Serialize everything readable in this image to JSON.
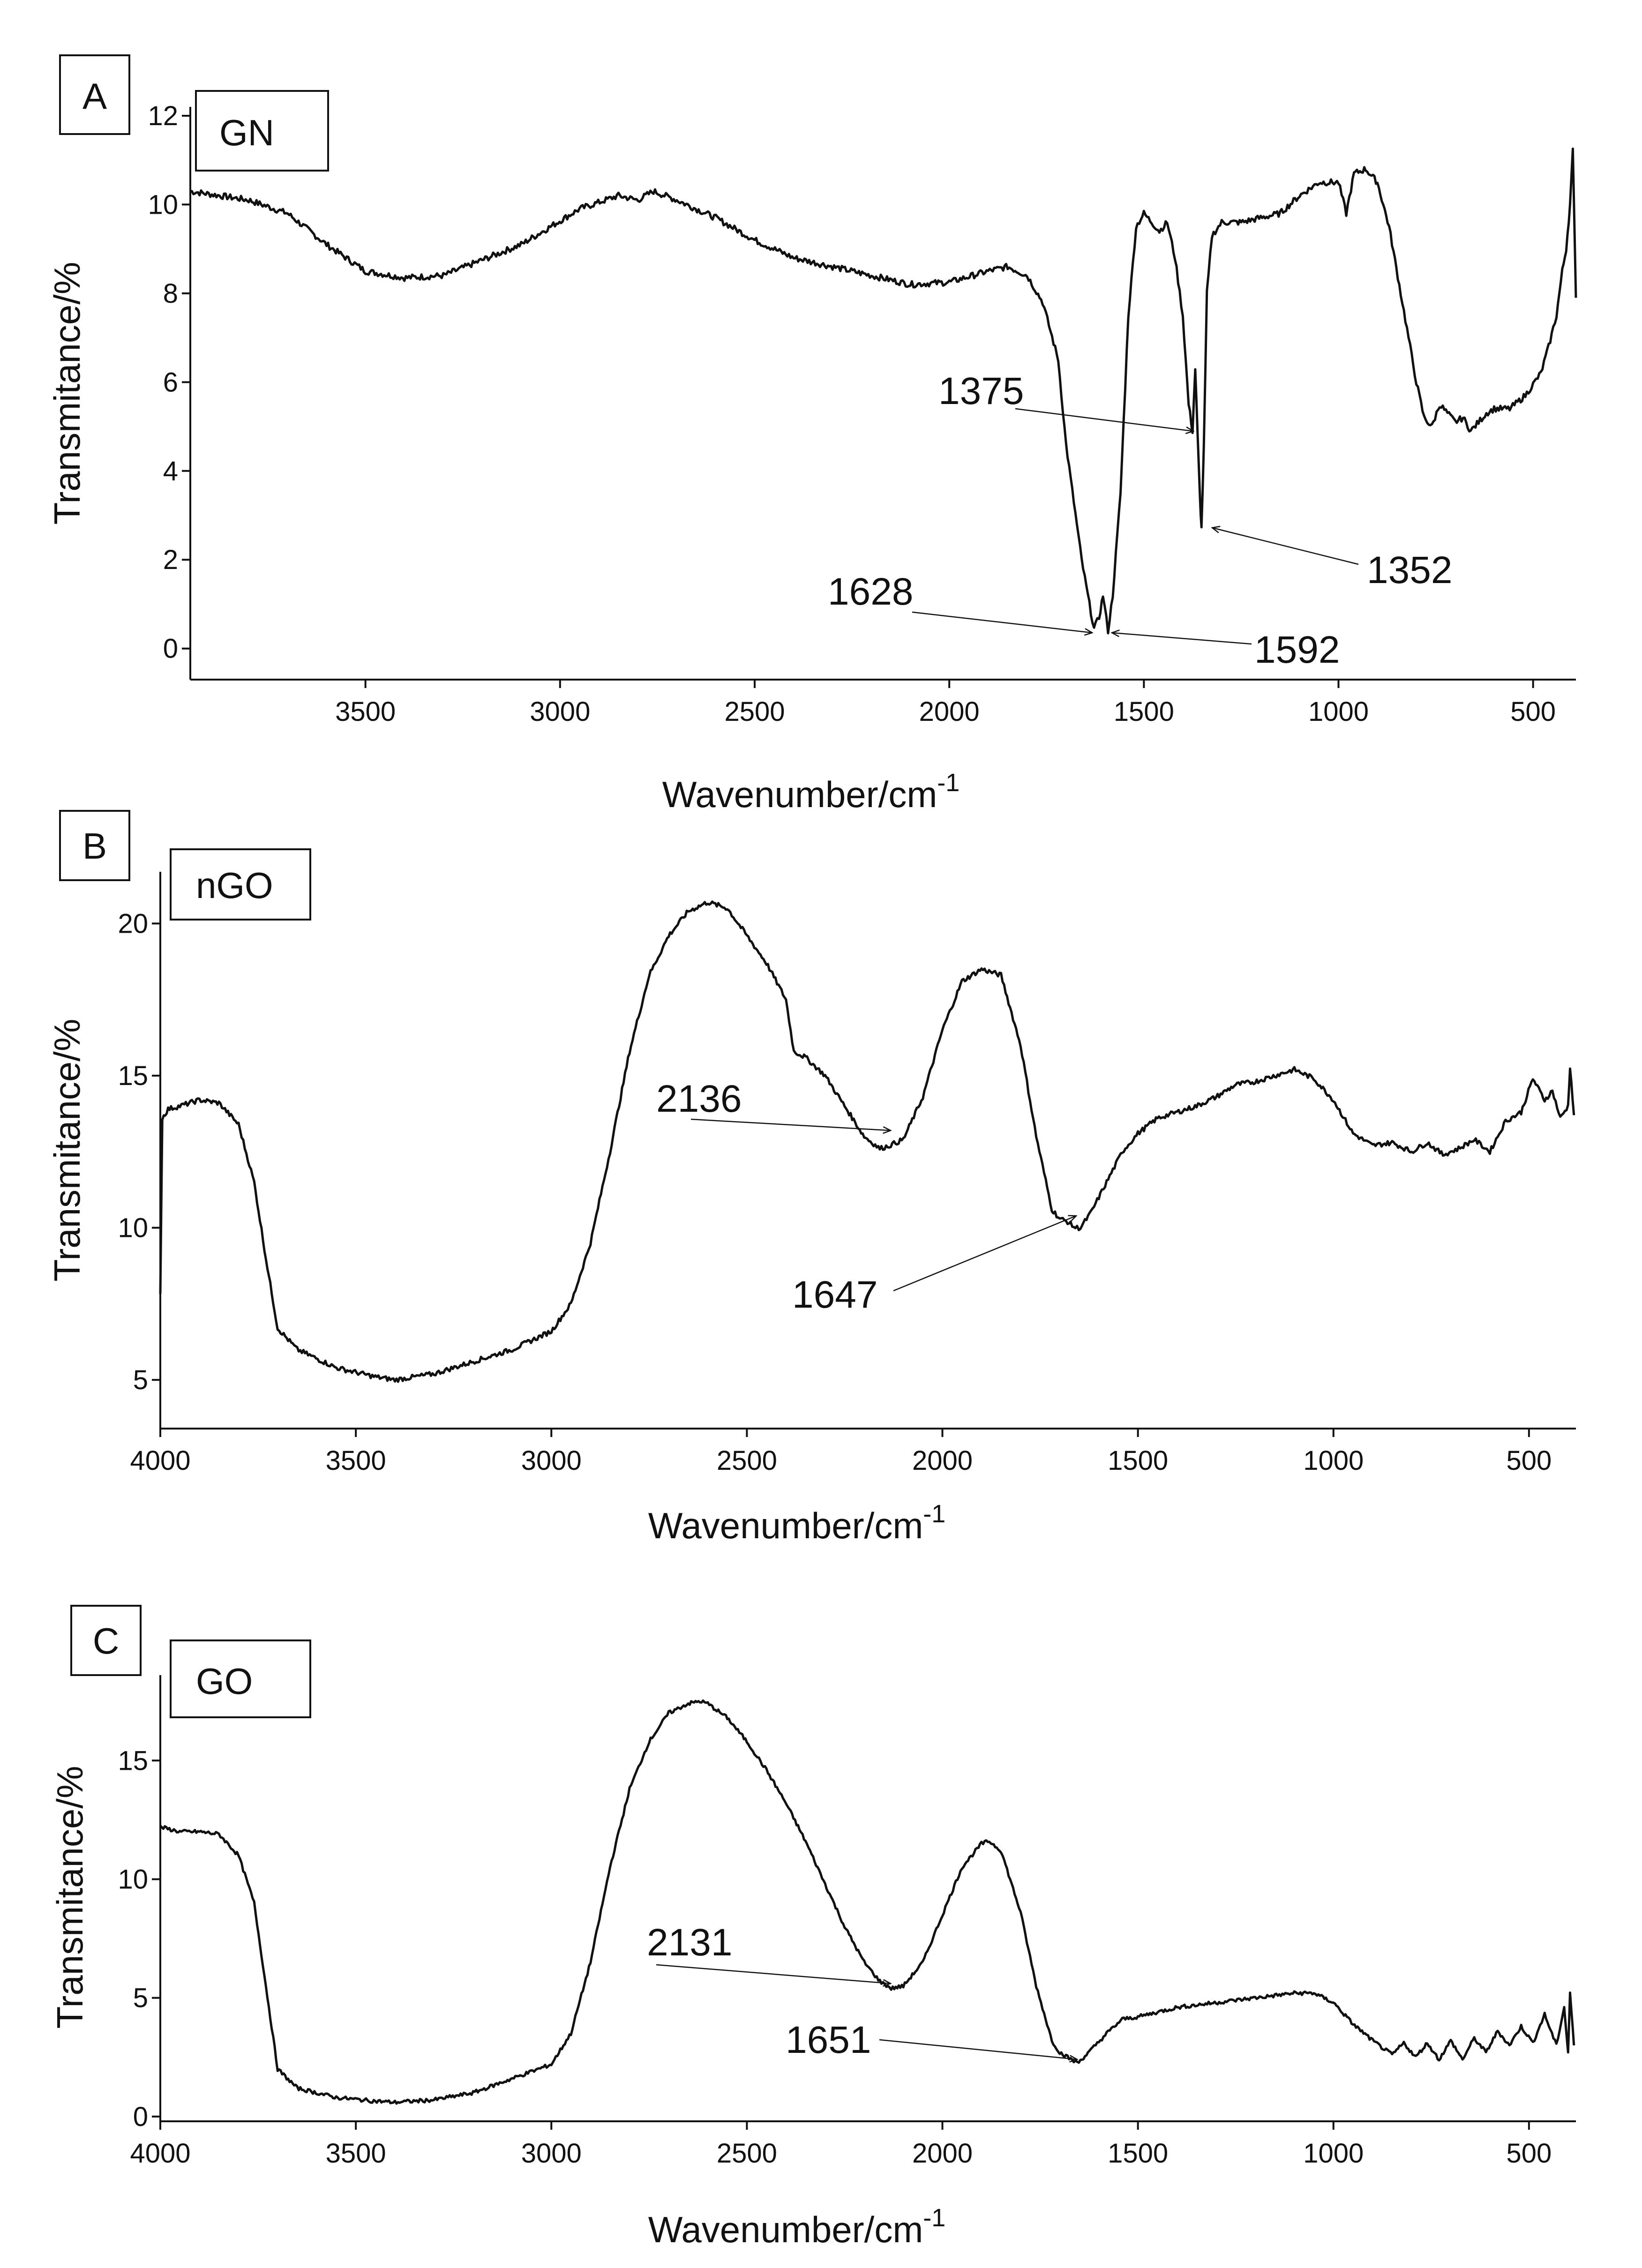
{
  "chart_data": [
    {
      "type": "line",
      "panel": "A",
      "sample": "GN",
      "xlabel": "Wavenumber/cm",
      "xlabel_superscript": "-1",
      "ylabel": "Transmitance/%",
      "xlim": [
        3950,
        390
      ],
      "ylim": [
        -0.7,
        12.2
      ],
      "xticks": [
        3500,
        3000,
        2500,
        2000,
        1500,
        1000,
        500
      ],
      "yticks": [
        0,
        2,
        4,
        6,
        8,
        10,
        12
      ],
      "noise": 0.07,
      "series": [
        {
          "name": "GN",
          "x": [
            3950,
            3800,
            3700,
            3600,
            3500,
            3400,
            3300,
            3100,
            2950,
            2850,
            2800,
            2760,
            2700,
            2600,
            2500,
            2400,
            2300,
            2200,
            2100,
            2000,
            1900,
            1850,
            1800,
            1760,
            1720,
            1700,
            1680,
            1660,
            1640,
            1628,
            1615,
            1605,
            1592,
            1580,
            1560,
            1540,
            1520,
            1500,
            1480,
            1460,
            1440,
            1420,
            1400,
            1385,
            1375,
            1368,
            1362,
            1356,
            1352,
            1346,
            1338,
            1325,
            1300,
            1250,
            1200,
            1150,
            1100,
            1050,
            1000,
            980,
            960,
            930,
            900,
            870,
            840,
            800,
            780,
            760,
            740,
            720,
            700,
            680,
            660,
            640,
            620,
            600,
            560,
            520,
            480,
            460,
            440,
            425,
            415,
            405,
            398,
            390
          ],
          "y": [
            10.3,
            10.1,
            9.8,
            9.1,
            8.5,
            8.35,
            8.4,
            9.1,
            9.9,
            10.2,
            10.1,
            10.3,
            10.1,
            9.7,
            9.2,
            8.8,
            8.6,
            8.4,
            8.2,
            8.25,
            8.5,
            8.6,
            8.4,
            7.8,
            6.5,
            4.6,
            3.3,
            2.0,
            1.0,
            0.45,
            0.7,
            1.2,
            0.4,
            1.2,
            3.5,
            7.5,
            9.5,
            9.8,
            9.6,
            9.4,
            9.6,
            8.8,
            7.5,
            5.5,
            4.9,
            6.3,
            4.8,
            3.4,
            2.7,
            4.5,
            8.0,
            9.3,
            9.6,
            9.6,
            9.7,
            9.8,
            10.2,
            10.5,
            10.5,
            9.8,
            10.7,
            10.8,
            10.5,
            9.5,
            8.0,
            6.0,
            5.2,
            5.0,
            5.5,
            5.3,
            5.1,
            5.2,
            4.9,
            5.1,
            5.3,
            5.4,
            5.4,
            5.7,
            6.2,
            6.8,
            7.5,
            8.5,
            9.0,
            10.0,
            11.2,
            7.9
          ]
        }
      ],
      "annotations": [
        {
          "label": "1375",
          "x": 1375,
          "y": 4.9
        },
        {
          "label": "1352",
          "x": 1352,
          "y": 2.75
        },
        {
          "label": "1628",
          "x": 1628,
          "y": 0.4
        },
        {
          "label": "1592",
          "x": 1592,
          "y": 0.35
        }
      ]
    },
    {
      "type": "line",
      "panel": "B",
      "sample": "nGO",
      "xlabel": "Wavenumber/cm",
      "xlabel_superscript": "-1",
      "ylabel": "Transmitance/%",
      "xlim": [
        4000,
        380
      ],
      "ylim": [
        3.4,
        21.7
      ],
      "xticks": [
        4000,
        3500,
        3000,
        2500,
        2000,
        1500,
        1000,
        500
      ],
      "yticks": [
        5,
        10,
        15,
        20
      ],
      "noise": 0.08,
      "series": [
        {
          "name": "nGO",
          "x": [
            4000,
            3995,
            3980,
            3950,
            3900,
            3850,
            3800,
            3760,
            3730,
            3700,
            3650,
            3550,
            3450,
            3400,
            3300,
            3200,
            3100,
            3000,
            2950,
            2900,
            2850,
            2800,
            2750,
            2700,
            2650,
            2600,
            2550,
            2500,
            2450,
            2400,
            2380,
            2350,
            2300,
            2250,
            2200,
            2160,
            2136,
            2100,
            2050,
            2000,
            1950,
            1900,
            1850,
            1800,
            1760,
            1720,
            1700,
            1680,
            1660,
            1647,
            1620,
            1580,
            1540,
            1500,
            1450,
            1400,
            1350,
            1300,
            1250,
            1200,
            1150,
            1100,
            1050,
            1000,
            950,
            900,
            850,
            800,
            760,
            720,
            680,
            640,
            600,
            560,
            520,
            490,
            460,
            440,
            420,
            400,
            395,
            385
          ],
          "y": [
            7.9,
            13.6,
            13.9,
            14.0,
            14.2,
            14.1,
            13.4,
            11.5,
            9.0,
            6.7,
            6.0,
            5.4,
            5.1,
            5.0,
            5.2,
            5.6,
            6.0,
            6.6,
            7.5,
            9.5,
            12.5,
            15.8,
            18.3,
            19.6,
            20.4,
            20.7,
            20.5,
            19.6,
            18.7,
            17.5,
            15.8,
            15.6,
            15.0,
            14.0,
            13.0,
            12.6,
            12.7,
            12.9,
            14.3,
            16.5,
            18.1,
            18.5,
            18.3,
            16.0,
            13.0,
            10.6,
            10.3,
            10.2,
            10.0,
            10.0,
            10.5,
            11.5,
            12.5,
            13.1,
            13.6,
            13.8,
            14.0,
            14.3,
            14.7,
            14.8,
            15.0,
            15.2,
            14.9,
            14.2,
            13.1,
            12.7,
            12.8,
            12.5,
            12.8,
            12.4,
            12.6,
            12.9,
            12.5,
            13.5,
            13.8,
            14.9,
            14.2,
            14.5,
            13.6,
            14.0,
            15.3,
            13.7
          ]
        }
      ],
      "annotations": [
        {
          "label": "2136",
          "x": 2170,
          "y": 12.5
        },
        {
          "label": "1647",
          "x": 1660,
          "y": 10.0
        }
      ]
    },
    {
      "type": "line",
      "panel": "C",
      "sample": "GO",
      "xlabel": "Wavenumber/cm",
      "xlabel_superscript": "-1",
      "ylabel": "Transmitance/%",
      "xlim": [
        4000,
        380
      ],
      "ylim": [
        -0.2,
        18.6
      ],
      "xticks": [
        4000,
        3500,
        3000,
        2500,
        2000,
        1500,
        1000,
        500
      ],
      "yticks": [
        0,
        5,
        10,
        15
      ],
      "noise": 0.08,
      "series": [
        {
          "name": "GO",
          "x": [
            4000,
            3950,
            3900,
            3850,
            3800,
            3760,
            3730,
            3700,
            3650,
            3550,
            3450,
            3400,
            3300,
            3200,
            3100,
            3000,
            2950,
            2900,
            2850,
            2800,
            2750,
            2700,
            2650,
            2620,
            2600,
            2550,
            2500,
            2450,
            2400,
            2350,
            2300,
            2250,
            2200,
            2160,
            2131,
            2100,
            2050,
            2000,
            1950,
            1900,
            1880,
            1850,
            1800,
            1760,
            1720,
            1700,
            1680,
            1660,
            1651,
            1620,
            1580,
            1540,
            1500,
            1450,
            1400,
            1350,
            1300,
            1250,
            1200,
            1150,
            1100,
            1050,
            1000,
            950,
            900,
            850,
            820,
            790,
            760,
            730,
            700,
            670,
            640,
            610,
            580,
            550,
            520,
            490,
            460,
            430,
            410,
            400,
            395,
            385
          ],
          "y": [
            12.2,
            12.0,
            12.0,
            11.9,
            11.0,
            9.0,
            5.5,
            2.0,
            1.2,
            0.8,
            0.65,
            0.6,
            0.7,
            1.0,
            1.6,
            2.2,
            3.5,
            6.5,
            10.5,
            13.8,
            15.8,
            17.0,
            17.4,
            17.5,
            17.4,
            16.8,
            15.8,
            14.6,
            13.2,
            11.6,
            9.8,
            8.0,
            6.5,
            5.7,
            5.4,
            5.5,
            6.5,
            8.5,
            10.5,
            11.5,
            11.6,
            11.2,
            8.6,
            5.5,
            3.2,
            2.7,
            2.5,
            2.3,
            2.3,
            2.8,
            3.5,
            4.1,
            4.2,
            4.4,
            4.6,
            4.7,
            4.8,
            4.9,
            5.0,
            5.1,
            5.2,
            5.2,
            4.8,
            3.9,
            3.2,
            2.6,
            3.1,
            2.5,
            3.1,
            2.4,
            3.2,
            2.4,
            3.3,
            2.7,
            3.6,
            3.0,
            3.8,
            3.1,
            4.3,
            3.0,
            4.6,
            2.7,
            5.2,
            3.0
          ]
        }
      ],
      "annotations": [
        {
          "label": "2131",
          "x": 2140,
          "y": 5.3
        },
        {
          "label": "1651",
          "x": 1690,
          "y": 2.2
        }
      ]
    }
  ]
}
